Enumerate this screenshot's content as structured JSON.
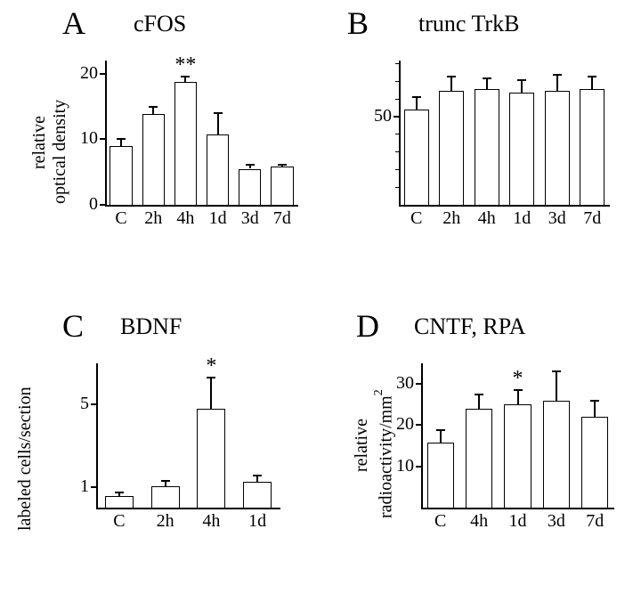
{
  "background_color": "#ffffff",
  "bar_border_color": "#000000",
  "bar_fill_color": "#ffffff",
  "axis_color": "#000000",
  "font_family": "Times New Roman",
  "panelA": {
    "letter": "A",
    "title": "cFOS",
    "ylabel": "relative\noptical density",
    "categories": [
      "C",
      "2h",
      "4h",
      "1d",
      "3d",
      "7d"
    ],
    "values": [
      9.0,
      13.8,
      18.8,
      10.7,
      5.5,
      5.8
    ],
    "errors": [
      1.1,
      1.2,
      0.7,
      3.3,
      0.6,
      0.3
    ],
    "ylim": [
      0,
      22
    ],
    "yticks": [
      0,
      10,
      20
    ],
    "sig": "**",
    "sig_index": 2,
    "bar_width": 0.7
  },
  "panelB": {
    "letter": "B",
    "title": "trunc TrkB",
    "categories": [
      "C",
      "2h",
      "4h",
      "1d",
      "3d",
      "7d"
    ],
    "values": [
      54,
      65,
      66,
      64,
      65,
      66
    ],
    "errors": [
      7,
      8,
      6,
      7,
      9,
      7
    ],
    "ylim": [
      0,
      82
    ],
    "yticks": [
      50
    ],
    "minor_ticks": true,
    "bar_width": 0.7
  },
  "panelC": {
    "letter": "C",
    "title": "BDNF",
    "ylabel": "labeled cells/section",
    "categories": [
      "C",
      "2h",
      "4h",
      "1d"
    ],
    "values": [
      0.55,
      1.05,
      4.8,
      1.25
    ],
    "errors": [
      0.2,
      0.25,
      1.5,
      0.3
    ],
    "ylim": [
      0,
      7
    ],
    "yticks": [
      1,
      5
    ],
    "sig": "*",
    "sig_index": 2,
    "bar_width": 0.62
  },
  "panelD": {
    "letter": "D",
    "title": "CNTF, RPA",
    "ylabel": "relative\nradioactivity/mm",
    "ylabel_sup": "2",
    "categories": [
      "C",
      "4h",
      "1d",
      "3d",
      "7d"
    ],
    "values": [
      15.7,
      24,
      25,
      26,
      22
    ],
    "errors": [
      3.2,
      3.5,
      3.5,
      7,
      4
    ],
    "ylim": [
      0,
      35
    ],
    "yticks": [
      10,
      20,
      30
    ],
    "sig": "*",
    "sig_index": 2,
    "bar_width": 0.7
  }
}
